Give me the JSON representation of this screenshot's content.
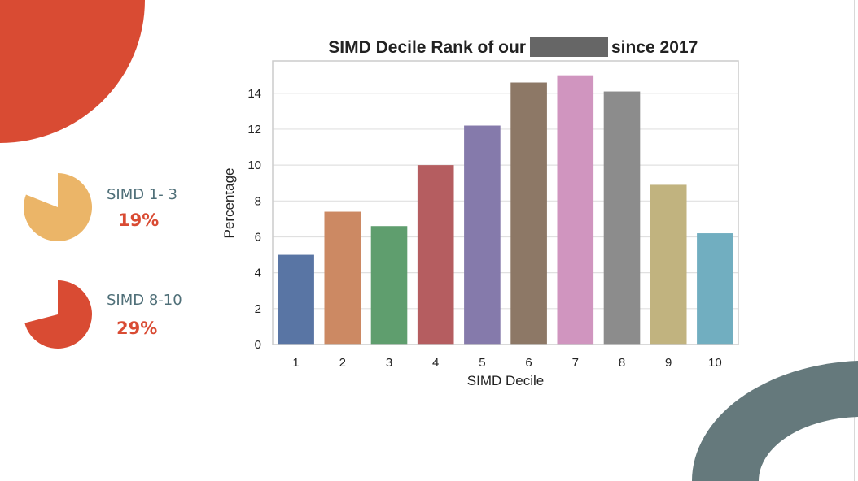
{
  "colors": {
    "accent_red": "#d94b33",
    "accent_yellow": "#ebb568",
    "accent_teal": "#65797c",
    "label_text": "#4f6f78"
  },
  "stats": [
    {
      "label": "SIMD 1- 3",
      "value": "19%",
      "fraction": 0.19,
      "color": "#ebb568",
      "value_color": "#d94b33"
    },
    {
      "label": "SIMD 8-10",
      "value": "29%",
      "fraction": 0.29,
      "color": "#d94b33",
      "value_color": "#d94b33"
    }
  ],
  "chart_data": {
    "type": "bar",
    "title_left": "SIMD Decile Rank of our",
    "title_redacted": true,
    "title_right": "since 2017",
    "xlabel": "SIMD Decile",
    "ylabel": "Percentage",
    "categories": [
      "1",
      "2",
      "3",
      "4",
      "5",
      "6",
      "7",
      "8",
      "9",
      "10"
    ],
    "values": [
      5.0,
      7.4,
      6.6,
      10.0,
      12.2,
      14.6,
      15.0,
      14.1,
      8.9,
      6.2
    ],
    "colors": [
      "#5975a4",
      "#cc8963",
      "#5f9e6e",
      "#b55d60",
      "#857aab",
      "#8d7866",
      "#d095bf",
      "#8c8c8c",
      "#c1b37f",
      "#71aec0"
    ],
    "ylim": [
      0,
      15.8
    ],
    "yticks": [
      0,
      2,
      4,
      6,
      8,
      10,
      12,
      14
    ],
    "grid": true,
    "legend": "none"
  }
}
